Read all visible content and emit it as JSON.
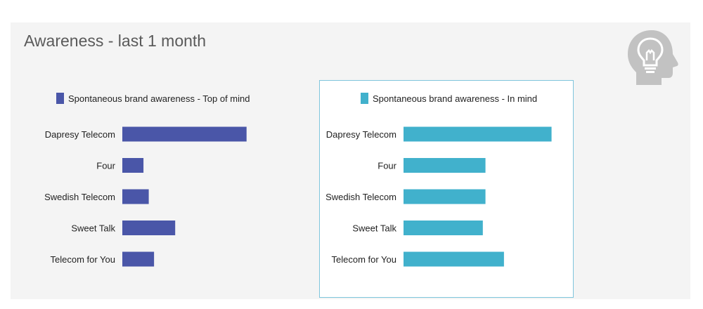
{
  "header": {
    "title": "Awareness - last 1 month",
    "icon": "head-lightbulb-icon"
  },
  "colors": {
    "series_top_of_mind": "#4a56a8",
    "series_in_mind": "#41b1cc",
    "icon": "#c2c2c2",
    "panel_bg": "#f4f4f4",
    "title_text": "#5a5a5a"
  },
  "chart_data": [
    {
      "type": "bar",
      "orientation": "horizontal",
      "title": "",
      "xlabel": "",
      "ylabel": "",
      "legend": "top",
      "grid": false,
      "categories": [
        "Dapresy Telecom",
        "Four",
        "Swedish Telecom",
        "Sweet Talk",
        "Telecom for You"
      ],
      "series": [
        {
          "name": "Spontaneous brand awareness - Top of mind",
          "values": [
            47,
            8,
            10,
            20,
            12
          ]
        }
      ],
      "xlim": [
        0,
        100
      ]
    },
    {
      "type": "bar",
      "orientation": "horizontal",
      "title": "",
      "xlabel": "",
      "ylabel": "",
      "legend": "top",
      "grid": false,
      "categories": [
        "Dapresy Telecom",
        "Four",
        "Swedish Telecom",
        "Sweet Talk",
        "Telecom for You"
      ],
      "series": [
        {
          "name": "Spontaneous brand awareness - In mind",
          "values": [
            56,
            31,
            31,
            30,
            38
          ]
        }
      ],
      "xlim": [
        0,
        100
      ]
    }
  ]
}
